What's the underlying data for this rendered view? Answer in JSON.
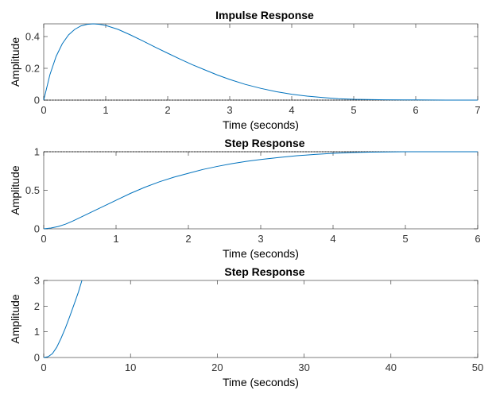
{
  "chart_data": [
    {
      "type": "line",
      "title": "Impulse Response",
      "xlabel": "Time (seconds)",
      "ylabel": "Amplitude",
      "xlim": [
        0,
        7
      ],
      "ylim": [
        0,
        0.48
      ],
      "xticks": [
        0,
        1,
        2,
        3,
        4,
        5,
        6,
        7
      ],
      "yticks": [
        0,
        0.2,
        0.4
      ],
      "ref_line": 0,
      "color": "#0072bd",
      "series": [
        {
          "x": [
            0,
            0.1,
            0.2,
            0.3,
            0.4,
            0.5,
            0.6,
            0.7,
            0.8,
            0.9,
            1.0,
            1.2,
            1.4,
            1.6,
            1.8,
            2.0,
            2.2,
            2.4,
            2.6,
            2.8,
            3.0,
            3.25,
            3.5,
            3.75,
            4.0,
            4.25,
            4.5,
            4.75,
            5.0,
            5.5,
            6.0,
            6.5,
            7.0
          ],
          "y": [
            0,
            0.16,
            0.275,
            0.355,
            0.41,
            0.445,
            0.467,
            0.477,
            0.48,
            0.477,
            0.47,
            0.445,
            0.41,
            0.372,
            0.333,
            0.295,
            0.258,
            0.222,
            0.19,
            0.158,
            0.13,
            0.099,
            0.074,
            0.053,
            0.037,
            0.025,
            0.016,
            0.009,
            0.005,
            0.002,
            0.001,
            0.0,
            0.0
          ]
        }
      ]
    },
    {
      "type": "line",
      "title": "Step Response",
      "xlabel": "Time (seconds)",
      "ylabel": "Amplitude",
      "xlim": [
        0,
        6
      ],
      "ylim": [
        0,
        1
      ],
      "xticks": [
        0,
        1,
        2,
        3,
        4,
        5,
        6
      ],
      "yticks": [
        0,
        0.5,
        1
      ],
      "ref_line": 1,
      "color": "#0072bd",
      "series": [
        {
          "x": [
            0,
            0.1,
            0.2,
            0.3,
            0.4,
            0.5,
            0.6,
            0.8,
            1.0,
            1.2,
            1.4,
            1.6,
            1.8,
            2.0,
            2.2,
            2.4,
            2.6,
            2.8,
            3.0,
            3.25,
            3.5,
            3.75,
            4.0,
            4.25,
            4.5,
            5.0,
            5.5,
            6.0
          ],
          "y": [
            0,
            0.01,
            0.03,
            0.06,
            0.1,
            0.145,
            0.19,
            0.28,
            0.37,
            0.46,
            0.54,
            0.61,
            0.67,
            0.72,
            0.77,
            0.81,
            0.845,
            0.875,
            0.9,
            0.925,
            0.948,
            0.965,
            0.98,
            0.99,
            0.995,
            1.0,
            1.0,
            1.0
          ]
        }
      ]
    },
    {
      "type": "line",
      "title": "Step Response",
      "xlabel": "Time (seconds)",
      "ylabel": "Amplitude",
      "xlim": [
        0,
        50
      ],
      "ylim": [
        0,
        3
      ],
      "xticks": [
        0,
        10,
        20,
        30,
        40,
        50
      ],
      "yticks": [
        0,
        1,
        2,
        3
      ],
      "color": "#0072bd",
      "series": [
        {
          "x": [
            0,
            0.5,
            1.0,
            1.5,
            2.0,
            2.5,
            3.0,
            3.5,
            4.0,
            4.4
          ],
          "y": [
            0,
            0.03,
            0.15,
            0.4,
            0.75,
            1.15,
            1.6,
            2.07,
            2.55,
            3.0
          ]
        }
      ]
    }
  ]
}
